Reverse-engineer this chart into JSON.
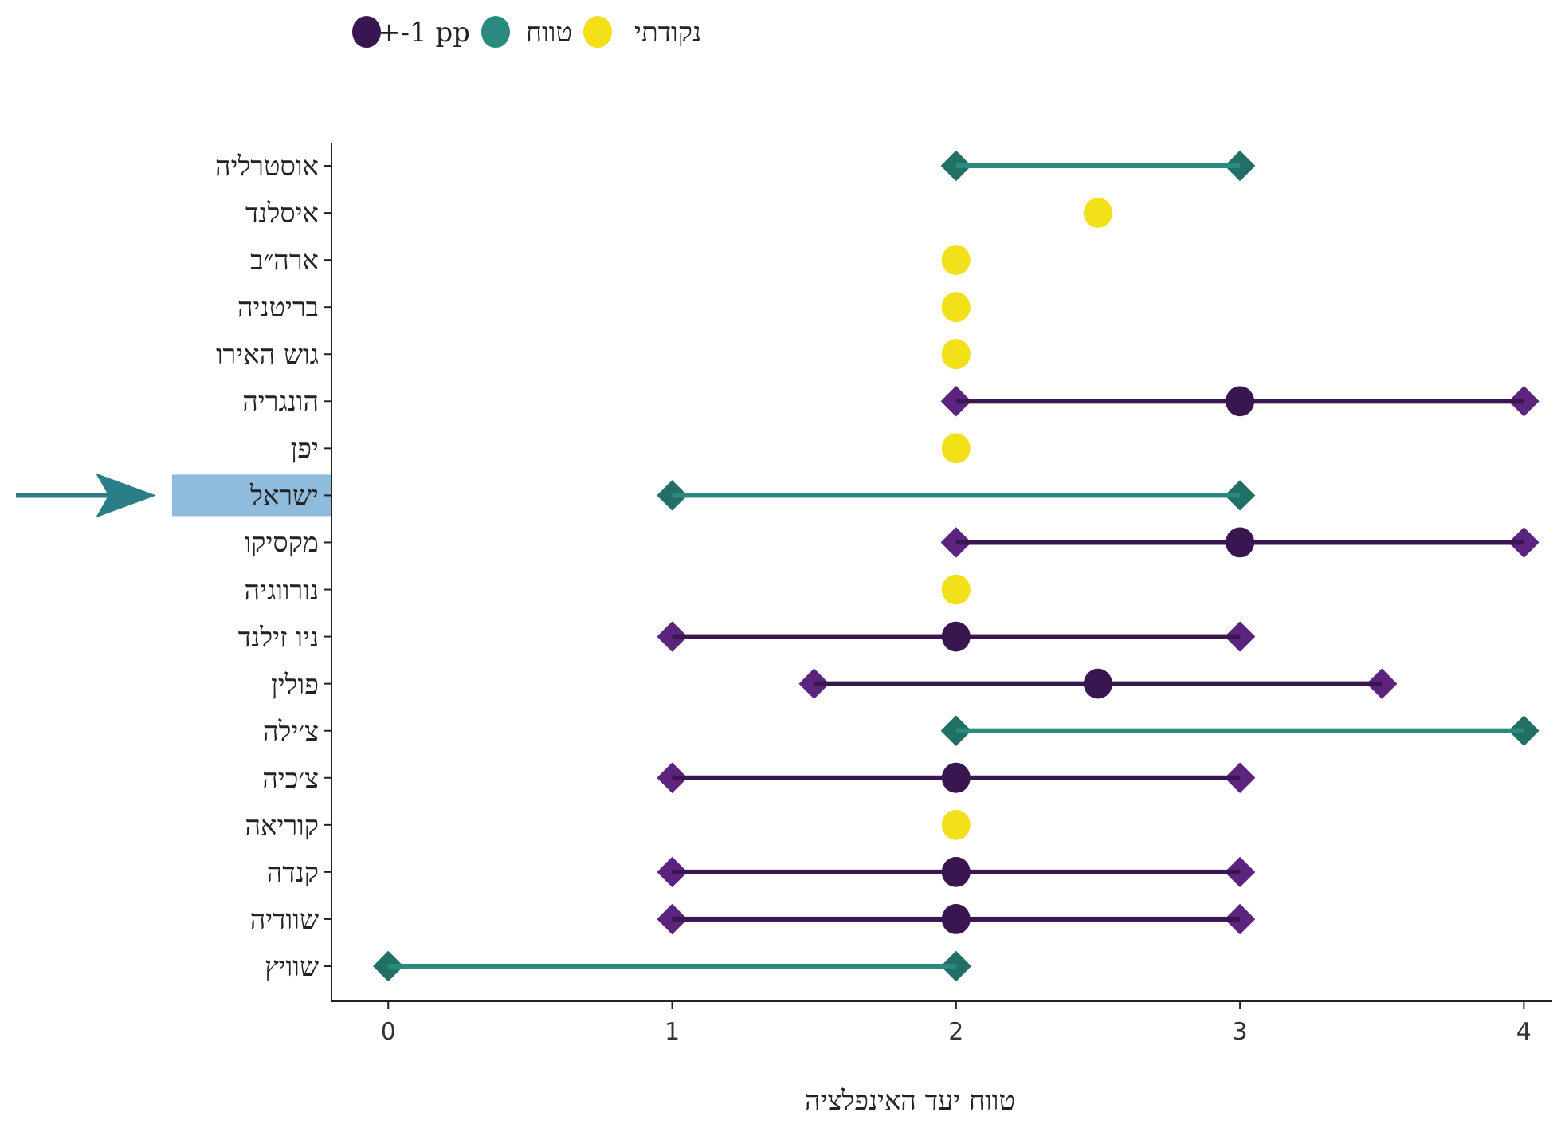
{
  "chart_data": {
    "type": "scatter",
    "orientation": "horizontal",
    "xlabel": "טווח יעד האינפלציה",
    "categories": [
      "אוסטרליה",
      "איסלנד",
      "ארה״ב",
      "בריטניה",
      "גוש האירו",
      "הונגריה",
      "יפן",
      "ישראל",
      "מקסיקו",
      "נורווגיה",
      "ניו זילנד",
      "פולין",
      "צ׳ילה",
      "צ׳כיה",
      "קוריאה",
      "קנדה",
      "שוודיה",
      "שוויץ"
    ],
    "xlim": [
      -0.2,
      4.1
    ],
    "xticks": [
      0,
      1,
      2,
      3,
      4
    ],
    "grid": false,
    "legend": "top left",
    "series": [
      {
        "name": "נקודתי",
        "color": "#f2e018",
        "marker": "circle",
        "values": [
          null,
          2.5,
          2,
          2,
          2,
          null,
          2,
          null,
          null,
          2,
          null,
          null,
          null,
          null,
          2,
          null,
          null,
          null
        ]
      },
      {
        "name": "טווח",
        "color": "#2a8a80",
        "type": "bar",
        "marker": "diamond",
        "base": [
          2,
          null,
          null,
          null,
          null,
          null,
          null,
          1,
          null,
          null,
          null,
          null,
          2,
          null,
          null,
          null,
          null,
          0
        ],
        "values": [
          1,
          null,
          null,
          null,
          null,
          null,
          null,
          2,
          null,
          null,
          null,
          null,
          2,
          null,
          null,
          null,
          null,
          2
        ]
      },
      {
        "color": "#3a1650",
        "type": "bar",
        "marker": "diamond",
        "base": [
          null,
          null,
          null,
          null,
          null,
          2,
          null,
          null,
          2,
          null,
          1,
          1.5,
          null,
          1,
          null,
          1,
          1,
          null
        ],
        "values": [
          null,
          null,
          null,
          null,
          null,
          2,
          null,
          null,
          2,
          null,
          2,
          2,
          null,
          2,
          null,
          2,
          2,
          null
        ]
      },
      {
        "name": "+-1 pp",
        "color": "#3a1650",
        "type": "scatter",
        "marker": "circle",
        "values": [
          null,
          null,
          null,
          null,
          null,
          3,
          null,
          null,
          3,
          null,
          2,
          2.5,
          null,
          2,
          null,
          2,
          2,
          null
        ]
      }
    ]
  }
}
